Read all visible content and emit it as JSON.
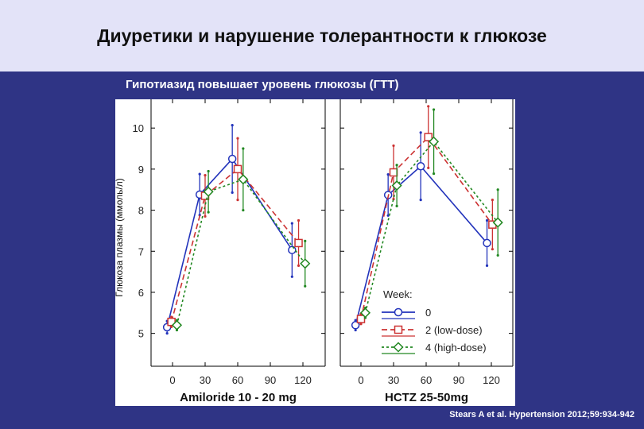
{
  "slide": {
    "title": "Диуретики и нарушение толерантности к глюкозе",
    "subtitle": "Гипотиазид повышает уровень глюкозы (ГТТ)",
    "citation": "Stears A et al. Hypertension 2012;59:934-942"
  },
  "chart_data": [
    {
      "type": "line",
      "title": "",
      "xlabel": "Amiloride 10 - 20 mg",
      "ylabel": "Глюкоза плазмы (ммоль/л)",
      "x": [
        0,
        30,
        60,
        90,
        120
      ],
      "xticks": [
        "0",
        "30",
        "60",
        "90",
        "120"
      ],
      "ylim": [
        4.2,
        10.7
      ],
      "yticks": [
        "5",
        "6",
        "7",
        "8",
        "9",
        "10"
      ],
      "series": [
        {
          "name": "0",
          "color": "#2233bb",
          "marker": "circle",
          "line": "solid",
          "points": [
            [
              -5,
              5.15,
              0.15
            ],
            [
              25,
              8.38,
              0.5
            ],
            [
              55,
              9.25,
              0.82
            ],
            [
              110,
              7.03,
              0.65
            ]
          ]
        },
        {
          "name": "2 (low-dose)",
          "color": "#cc3333",
          "marker": "square",
          "line": "dashed",
          "points": [
            [
              -1,
              5.28,
              0.12
            ],
            [
              30,
              8.35,
              0.5
            ],
            [
              60,
              9.0,
              0.75
            ],
            [
              116,
              7.2,
              0.55
            ]
          ]
        },
        {
          "name": "4 (high-dose)",
          "color": "#228822",
          "marker": "diamond",
          "line": "dotted",
          "points": [
            [
              4,
              5.2,
              0.12
            ],
            [
              33,
              8.45,
              0.5
            ],
            [
              65,
              8.75,
              0.75
            ],
            [
              122,
              6.7,
              0.55
            ]
          ]
        }
      ]
    },
    {
      "type": "line",
      "title": "",
      "xlabel": "HCTZ 25-50mg",
      "ylabel": "",
      "x": [
        0,
        30,
        60,
        90,
        120
      ],
      "xticks": [
        "0",
        "30",
        "60",
        "90",
        "120"
      ],
      "ylim": [
        4.2,
        10.7
      ],
      "yticks": [],
      "series": [
        {
          "name": "0",
          "color": "#2233bb",
          "marker": "circle",
          "line": "solid",
          "points": [
            [
              -5,
              5.2,
              0.12
            ],
            [
              25,
              8.37,
              0.5
            ],
            [
              55,
              9.07,
              0.82
            ],
            [
              116,
              7.2,
              0.55
            ]
          ]
        },
        {
          "name": "2 (low-dose)",
          "color": "#cc3333",
          "marker": "square",
          "line": "dashed",
          "points": [
            [
              0,
              5.35,
              0.12
            ],
            [
              30,
              8.92,
              0.65
            ],
            [
              62,
              9.78,
              0.75
            ],
            [
              121,
              7.65,
              0.6
            ]
          ]
        },
        {
          "name": "4 (high-dose)",
          "color": "#228822",
          "marker": "diamond",
          "line": "dotted",
          "points": [
            [
              4,
              5.5,
              0.12
            ],
            [
              33,
              8.6,
              0.5
            ],
            [
              67,
              9.67,
              0.78
            ],
            [
              126,
              7.7,
              0.8
            ]
          ]
        }
      ],
      "legend": {
        "title": "Week:",
        "placement": "bottom-right"
      }
    }
  ]
}
